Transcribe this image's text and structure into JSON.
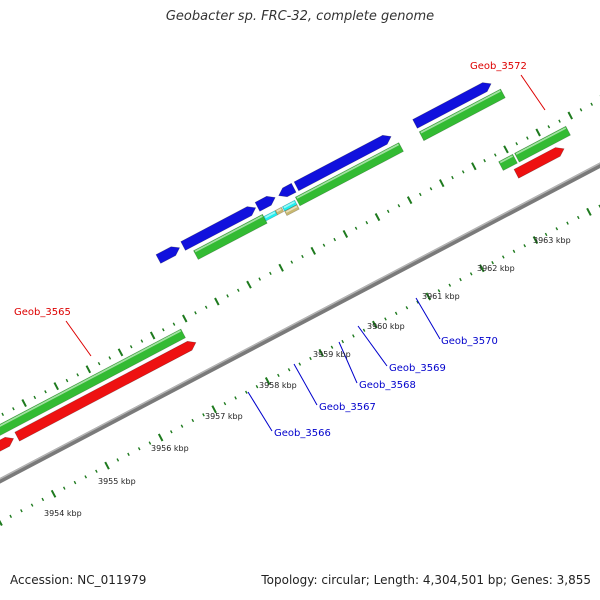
{
  "title": "Geobacter sp. FRC-32, complete genome",
  "footer": {
    "accession": "Accession: NC_011979",
    "summary": "Topology: circular; Length: 4,304,501 bp; Genes: 3,855"
  },
  "colors": {
    "backbone": "#7a7a7a",
    "tick": "#1e7a1e",
    "cds_green": "#33bb33",
    "rna_red": "#ee1111",
    "cds_blue": "#1111dd",
    "cds_cyan": "#22eeee",
    "cds_tan": "#c8b870",
    "label_red": "#dd0000",
    "label_blue": "#0000cc"
  },
  "scale_labels": [
    "3954 kbp",
    "3955 kbp",
    "3956 kbp",
    "3957 kbp",
    "3958 kbp",
    "3959 kbp",
    "3960 kbp",
    "3961 kbp",
    "3962 kbp",
    "3963 kbp"
  ],
  "gene_labels": {
    "geob_3565": "Geob_3565",
    "geob_3566": "Geob_3566",
    "geob_3567": "Geob_3567",
    "geob_3568": "Geob_3568",
    "geob_3569": "Geob_3569",
    "geob_3570": "Geob_3570",
    "geob_3572": "Geob_3572"
  }
}
